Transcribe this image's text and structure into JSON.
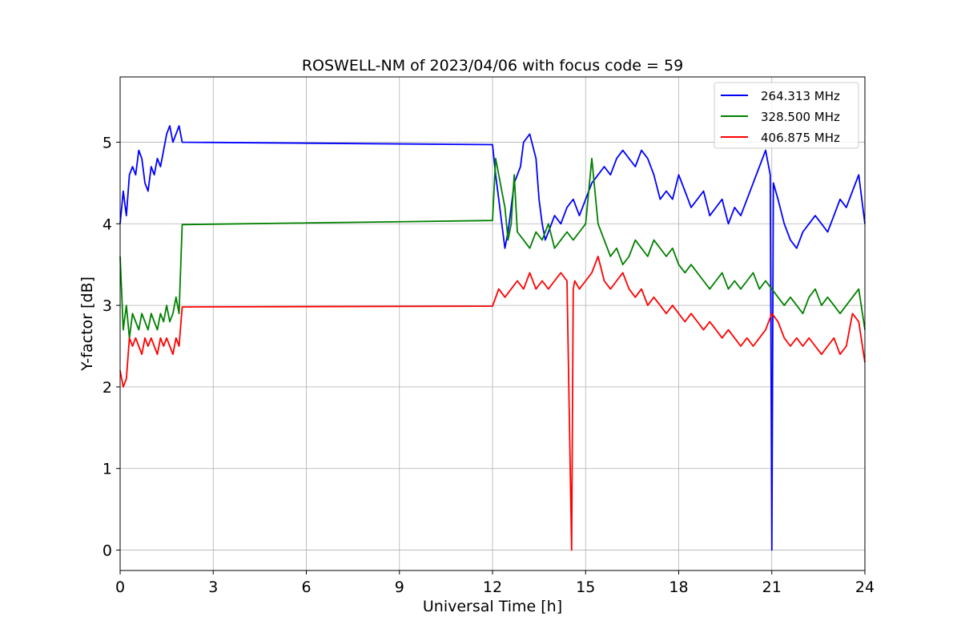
{
  "chart_data": {
    "type": "line",
    "title": "ROSWELL-NM of 2023/04/06 with focus code = 59",
    "xlabel": "Universal Time [h]",
    "ylabel": "Y-factor [dB]",
    "xlim": [
      0,
      24
    ],
    "ylim": [
      -0.25,
      5.8
    ],
    "xticks": [
      0,
      3,
      6,
      9,
      12,
      15,
      18,
      21,
      24
    ],
    "yticks": [
      0,
      1,
      2,
      3,
      4,
      5
    ],
    "grid": true,
    "legend_position": "top-right",
    "series": [
      {
        "name": "264.313 MHz",
        "color": "#0000ff",
        "x": [
          0,
          0.1,
          0.2,
          0.3,
          0.4,
          0.5,
          0.6,
          0.7,
          0.8,
          0.9,
          1.0,
          1.1,
          1.2,
          1.3,
          1.4,
          1.5,
          1.6,
          1.7,
          1.8,
          1.9,
          2.0,
          12.0,
          12.1,
          12.2,
          12.3,
          12.4,
          12.5,
          12.6,
          12.7,
          12.8,
          12.9,
          13.0,
          13.2,
          13.4,
          13.5,
          13.6,
          13.7,
          13.8,
          14.0,
          14.2,
          14.4,
          14.6,
          14.8,
          15.0,
          15.2,
          15.4,
          15.6,
          15.8,
          16.0,
          16.2,
          16.4,
          16.6,
          16.8,
          17.0,
          17.2,
          17.4,
          17.6,
          17.8,
          18.0,
          18.2,
          18.4,
          18.6,
          18.8,
          19.0,
          19.2,
          19.4,
          19.6,
          19.8,
          20.0,
          20.2,
          20.4,
          20.6,
          20.8,
          20.95,
          21.0,
          21.05,
          21.2,
          21.4,
          21.6,
          21.8,
          22.0,
          22.2,
          22.4,
          22.6,
          22.8,
          23.0,
          23.2,
          23.4,
          23.6,
          23.8,
          24.0
        ],
        "y": [
          4.0,
          4.4,
          4.1,
          4.6,
          4.7,
          4.6,
          4.9,
          4.8,
          4.5,
          4.4,
          4.7,
          4.6,
          4.8,
          4.7,
          4.9,
          5.1,
          5.2,
          5.0,
          5.1,
          5.2,
          5.0,
          4.97,
          4.6,
          4.3,
          4.0,
          3.7,
          3.9,
          4.2,
          4.5,
          4.6,
          4.7,
          5.0,
          5.1,
          4.8,
          4.3,
          4.0,
          3.8,
          3.9,
          4.1,
          4.0,
          4.2,
          4.3,
          4.1,
          4.3,
          4.5,
          4.6,
          4.7,
          4.6,
          4.8,
          4.9,
          4.8,
          4.7,
          4.9,
          4.8,
          4.6,
          4.3,
          4.4,
          4.3,
          4.6,
          4.4,
          4.2,
          4.3,
          4.4,
          4.1,
          4.2,
          4.3,
          4.0,
          4.2,
          4.1,
          4.3,
          4.5,
          4.7,
          4.9,
          4.6,
          0.0,
          4.5,
          4.3,
          4.0,
          3.8,
          3.7,
          3.9,
          4.0,
          4.1,
          4.0,
          3.9,
          4.1,
          4.3,
          4.2,
          4.4,
          4.6,
          4.0
        ]
      },
      {
        "name": "328.500 MHz",
        "color": "#008000",
        "x": [
          0,
          0.1,
          0.2,
          0.3,
          0.4,
          0.5,
          0.6,
          0.7,
          0.8,
          0.9,
          1.0,
          1.1,
          1.2,
          1.3,
          1.4,
          1.5,
          1.6,
          1.7,
          1.8,
          1.9,
          2.0,
          12.0,
          12.1,
          12.2,
          12.3,
          12.4,
          12.5,
          12.6,
          12.7,
          12.8,
          13.0,
          13.2,
          13.4,
          13.6,
          13.8,
          14.0,
          14.2,
          14.4,
          14.6,
          14.8,
          15.0,
          15.2,
          15.4,
          15.6,
          15.8,
          16.0,
          16.2,
          16.4,
          16.6,
          16.8,
          17.0,
          17.2,
          17.4,
          17.6,
          17.8,
          18.0,
          18.2,
          18.4,
          18.6,
          18.8,
          19.0,
          19.2,
          19.4,
          19.6,
          19.8,
          20.0,
          20.2,
          20.4,
          20.6,
          20.8,
          21.0,
          21.2,
          21.4,
          21.6,
          21.8,
          22.0,
          22.2,
          22.4,
          22.6,
          22.8,
          23.0,
          23.2,
          23.4,
          23.6,
          23.8,
          24.0
        ],
        "y": [
          3.6,
          2.7,
          3.0,
          2.6,
          2.9,
          2.8,
          2.7,
          2.9,
          2.8,
          2.7,
          2.9,
          2.8,
          2.7,
          2.9,
          2.8,
          3.0,
          2.8,
          2.9,
          3.1,
          2.9,
          3.99,
          4.04,
          4.8,
          4.6,
          4.4,
          4.2,
          3.8,
          4.0,
          4.6,
          3.9,
          3.8,
          3.7,
          3.9,
          3.8,
          4.0,
          3.7,
          3.8,
          3.9,
          3.8,
          3.9,
          4.0,
          4.8,
          4.0,
          3.8,
          3.6,
          3.7,
          3.5,
          3.6,
          3.8,
          3.7,
          3.6,
          3.8,
          3.7,
          3.6,
          3.7,
          3.5,
          3.4,
          3.5,
          3.4,
          3.3,
          3.2,
          3.3,
          3.4,
          3.2,
          3.3,
          3.2,
          3.3,
          3.4,
          3.2,
          3.3,
          3.2,
          3.1,
          3.0,
          3.1,
          3.0,
          2.9,
          3.1,
          3.2,
          3.0,
          3.1,
          3.0,
          2.9,
          3.0,
          3.1,
          3.2,
          2.7
        ]
      },
      {
        "name": "406.875 MHz",
        "color": "#ff0000",
        "x": [
          0,
          0.1,
          0.2,
          0.3,
          0.4,
          0.5,
          0.6,
          0.7,
          0.8,
          0.9,
          1.0,
          1.1,
          1.2,
          1.3,
          1.4,
          1.5,
          1.6,
          1.7,
          1.8,
          1.9,
          2.0,
          12.0,
          12.2,
          12.4,
          12.6,
          12.8,
          13.0,
          13.2,
          13.4,
          13.6,
          13.8,
          14.0,
          14.2,
          14.4,
          14.55,
          14.6,
          14.65,
          14.8,
          15.0,
          15.2,
          15.4,
          15.6,
          15.8,
          16.0,
          16.2,
          16.4,
          16.6,
          16.8,
          17.0,
          17.2,
          17.4,
          17.6,
          17.8,
          18.0,
          18.2,
          18.4,
          18.6,
          18.8,
          19.0,
          19.2,
          19.4,
          19.6,
          19.8,
          20.0,
          20.2,
          20.4,
          20.6,
          20.8,
          21.0,
          21.2,
          21.4,
          21.6,
          21.8,
          22.0,
          22.2,
          22.4,
          22.6,
          22.8,
          23.0,
          23.2,
          23.4,
          23.6,
          23.8,
          24.0
        ],
        "y": [
          2.2,
          2.0,
          2.1,
          2.6,
          2.5,
          2.6,
          2.5,
          2.4,
          2.6,
          2.5,
          2.6,
          2.5,
          2.4,
          2.6,
          2.5,
          2.6,
          2.5,
          2.4,
          2.6,
          2.5,
          2.98,
          2.99,
          3.2,
          3.1,
          3.2,
          3.3,
          3.2,
          3.4,
          3.2,
          3.3,
          3.2,
          3.3,
          3.4,
          3.3,
          0.0,
          3.2,
          3.3,
          3.2,
          3.3,
          3.4,
          3.6,
          3.3,
          3.2,
          3.3,
          3.4,
          3.2,
          3.1,
          3.2,
          3.0,
          3.1,
          3.0,
          2.9,
          3.0,
          2.9,
          2.8,
          2.9,
          2.8,
          2.7,
          2.8,
          2.7,
          2.6,
          2.7,
          2.6,
          2.5,
          2.6,
          2.5,
          2.6,
          2.7,
          2.9,
          2.8,
          2.6,
          2.5,
          2.6,
          2.5,
          2.6,
          2.5,
          2.4,
          2.5,
          2.6,
          2.4,
          2.5,
          2.9,
          2.8,
          2.3
        ]
      }
    ]
  }
}
